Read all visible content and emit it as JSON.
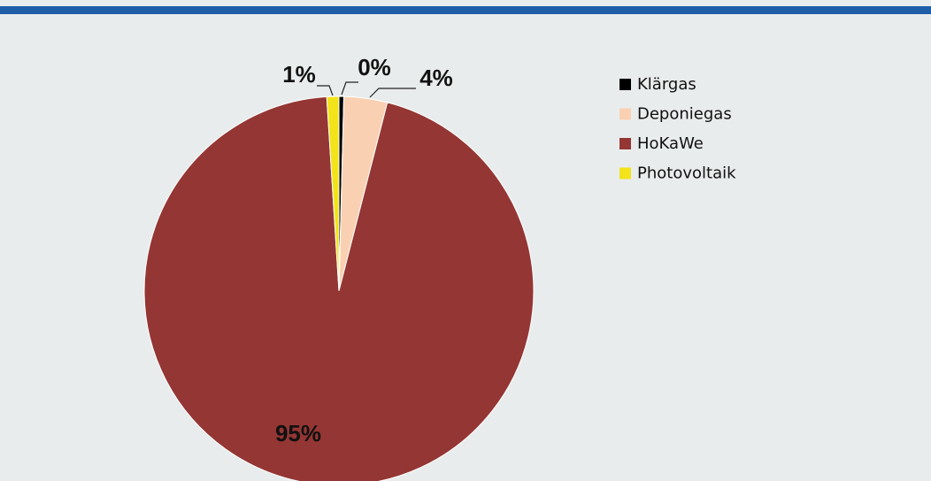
{
  "chart_data": {
    "type": "pie",
    "categories": [
      "Klärgas",
      "Deponiegas",
      "HoKaWe",
      "Photovoltaik"
    ],
    "values": [
      0.4,
      3.6,
      95,
      1
    ],
    "value_labels": [
      "0%",
      "4%",
      "95%",
      "1%"
    ],
    "colors": [
      "#000000",
      "#f9d0b2",
      "#943634",
      "#f2e31a"
    ],
    "legend": "right"
  }
}
